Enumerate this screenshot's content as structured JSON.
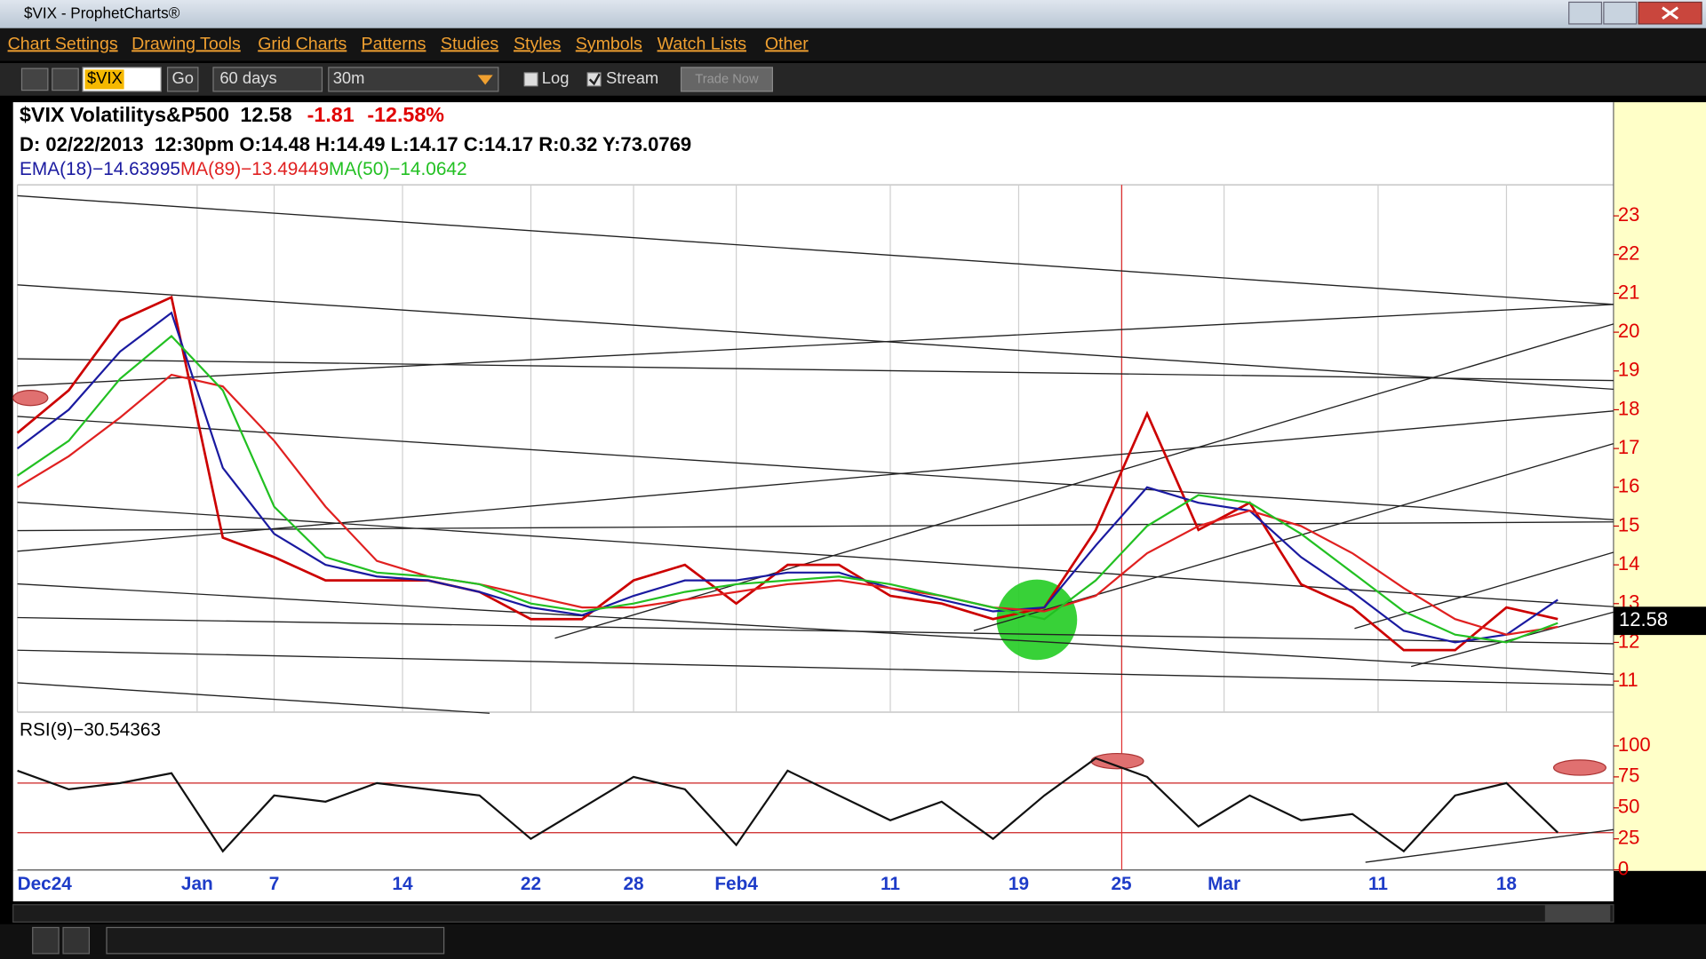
{
  "window": {
    "title": "$VIX - ProphetCharts®"
  },
  "menu": [
    "Chart Settings",
    "Drawing Tools",
    "Grid Charts",
    "Patterns",
    "Studies",
    "Styles",
    "Symbols",
    "Watch Lists",
    "Other"
  ],
  "toolbar": {
    "symbol": "$VIX",
    "go": "Go",
    "range": "60 days",
    "interval": "30m",
    "log": "Log",
    "stream": "Stream",
    "trade": "Trade Now"
  },
  "chart_data": [
    {
      "type": "line",
      "title": "$VIX Volatilitys&P500",
      "last": "12.58",
      "change": "-1.81",
      "change_pct": "-12.58%",
      "info": "D: 02/22/2013  12:30pm O:14.48 H:14.49 L:14.17 C:14.17 R:0.32 Y:73.0769",
      "last_label": "12.58",
      "x": [
        0,
        2,
        4,
        6,
        8,
        10,
        12,
        14,
        16,
        18,
        20,
        22,
        24,
        26,
        28,
        30,
        32,
        34,
        36,
        38,
        40,
        42,
        44,
        46,
        48,
        50,
        52,
        54,
        56,
        58,
        60
      ],
      "xlim": [
        0,
        62
      ],
      "xticks": [
        {
          "value": 0,
          "label": "Dec24"
        },
        {
          "value": 7,
          "label": "Jan"
        },
        {
          "value": 10,
          "label": "7"
        },
        {
          "value": 15,
          "label": "14"
        },
        {
          "value": 20,
          "label": "22"
        },
        {
          "value": 24,
          "label": "28"
        },
        {
          "value": 28,
          "label": "Feb4"
        },
        {
          "value": 34,
          "label": "11"
        },
        {
          "value": 39,
          "label": "19"
        },
        {
          "value": 43,
          "label": "25"
        },
        {
          "value": 47,
          "label": "Mar"
        },
        {
          "value": 53,
          "label": "11"
        },
        {
          "value": 58,
          "label": "18"
        }
      ],
      "ylim": [
        10.2,
        23.8
      ],
      "yticks": [
        11,
        12,
        13,
        14,
        15,
        16,
        17,
        18,
        19,
        20,
        21,
        22,
        23
      ],
      "grid": true,
      "series": [
        {
          "color": "#cc0000",
          "values": [
            17.4,
            18.5,
            20.3,
            20.9,
            14.7,
            14.2,
            13.6,
            13.6,
            13.6,
            13.3,
            12.6,
            12.6,
            13.6,
            14.0,
            13.0,
            14.0,
            14.0,
            13.2,
            13.0,
            12.6,
            12.9,
            14.9,
            17.9,
            14.9,
            15.6,
            13.5,
            12.9,
            11.8,
            11.8,
            12.9,
            12.6
          ]
        },
        {
          "name": "EMA(18)−14.63995",
          "color": "#1a1aa0",
          "values": [
            17.0,
            18.0,
            19.5,
            20.5,
            16.5,
            14.8,
            14.0,
            13.7,
            13.6,
            13.3,
            12.9,
            12.7,
            13.2,
            13.6,
            13.6,
            13.8,
            13.8,
            13.4,
            13.1,
            12.8,
            12.9,
            14.5,
            16.0,
            15.6,
            15.4,
            14.2,
            13.3,
            12.3,
            12.0,
            12.2,
            13.1
          ]
        },
        {
          "name": "MA(89)−13.49449",
          "color": "#e02020",
          "values": [
            16.0,
            16.8,
            17.8,
            18.9,
            18.6,
            17.2,
            15.5,
            14.1,
            13.7,
            13.5,
            13.2,
            12.9,
            12.9,
            13.1,
            13.3,
            13.5,
            13.6,
            13.4,
            13.2,
            12.9,
            12.8,
            13.2,
            14.3,
            15.0,
            15.4,
            15.0,
            14.3,
            13.4,
            12.6,
            12.2,
            12.4
          ]
        },
        {
          "name": "MA(50)−14.0642",
          "color": "#22c022",
          "values": [
            16.3,
            17.2,
            18.8,
            19.9,
            18.5,
            15.5,
            14.2,
            13.8,
            13.7,
            13.5,
            13.0,
            12.8,
            13.0,
            13.3,
            13.5,
            13.6,
            13.7,
            13.5,
            13.2,
            12.9,
            12.6,
            13.6,
            15.0,
            15.8,
            15.6,
            14.8,
            13.8,
            12.8,
            12.2,
            12.0,
            12.5
          ]
        }
      ]
    },
    {
      "type": "line",
      "title": "RSI(9)−30.54363",
      "x": [
        0,
        2,
        4,
        6,
        8,
        10,
        12,
        14,
        16,
        18,
        20,
        22,
        24,
        26,
        28,
        30,
        32,
        34,
        36,
        38,
        40,
        42,
        44,
        46,
        48,
        50,
        52,
        54,
        56,
        58,
        60
      ],
      "xlim": [
        0,
        62
      ],
      "ylim": [
        0,
        100
      ],
      "yticks": [
        0,
        25,
        50,
        75,
        100
      ],
      "bands": [
        30,
        70
      ],
      "series": [
        {
          "color": "#111111",
          "values": [
            80,
            65,
            70,
            78,
            15,
            60,
            55,
            70,
            65,
            60,
            25,
            50,
            75,
            65,
            20,
            80,
            60,
            40,
            55,
            25,
            60,
            90,
            75,
            35,
            60,
            40,
            45,
            15,
            60,
            70,
            30
          ]
        }
      ]
    }
  ]
}
